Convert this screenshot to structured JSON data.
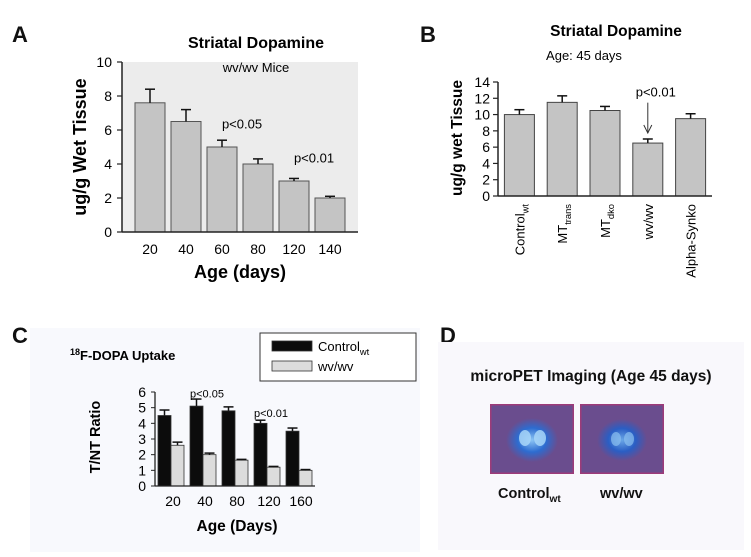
{
  "panels": {
    "a": "A",
    "b": "B",
    "c": "C",
    "d": "D"
  },
  "colors": {
    "bar_gray": "#c4c4c4",
    "bar_black": "#0c0c0c",
    "bar_light": "#dcdcdc",
    "axis": "#222222",
    "pet_bg": "#6a4d8e",
    "pet_blob": "#2a64c8",
    "pet_core": "#7fb4ec"
  },
  "chart_data": [
    {
      "type": "bar",
      "title": "Striatal Dopamine",
      "subtitle": "wv/wv Mice",
      "xlabel": "Age (days)",
      "ylabel": "ug/g Wet Tissue",
      "categories": [
        "20",
        "40",
        "60",
        "80",
        "120",
        "140"
      ],
      "values": [
        7.6,
        6.5,
        5.0,
        4.0,
        3.0,
        2.0
      ],
      "errors": [
        0.8,
        0.7,
        0.4,
        0.3,
        0.15,
        0.1
      ],
      "ylim": [
        0,
        10
      ],
      "yticks": [
        "0",
        "2",
        "4",
        "6",
        "8",
        "10"
      ],
      "annotations": [
        {
          "text": "p<0.05",
          "category": "60",
          "value": 6.1
        },
        {
          "text": "p<0.01",
          "category": "120",
          "value": 4.1
        }
      ],
      "grid": false
    },
    {
      "type": "bar",
      "title": "Striatal Dopamine",
      "subtitle": "Age: 45 days",
      "ylabel": "ug/g wet Tissue",
      "categories": [
        {
          "base": "Control",
          "sub": "wt"
        },
        {
          "base": "MT",
          "sub": "trans"
        },
        {
          "base": "MT",
          "sub": "dko"
        },
        {
          "base": "wv/wv",
          "sub": ""
        },
        {
          "base": "Alpha-Synko",
          "sub": ""
        }
      ],
      "values": [
        10.0,
        11.5,
        10.5,
        6.5,
        9.5
      ],
      "errors": [
        0.6,
        0.8,
        0.5,
        0.5,
        0.6
      ],
      "ylim": [
        0,
        14
      ],
      "yticks": [
        "0",
        "2",
        "4",
        "6",
        "8",
        "10",
        "12",
        "14"
      ],
      "annotations": [
        {
          "text": "p<0.01",
          "category": "wv/wv",
          "value": 12.2
        }
      ],
      "grid": false
    },
    {
      "type": "bar",
      "title": "F-DOPA Uptake",
      "title_sup": "18",
      "xlabel": "Age (Days)",
      "ylabel": "T/NT Ratio",
      "categories": [
        "20",
        "40",
        "80",
        "120",
        "160"
      ],
      "series": [
        {
          "name": "Control",
          "name_sub": "wt",
          "values": [
            4.5,
            5.1,
            4.8,
            4.0,
            3.5
          ],
          "errors": [
            0.35,
            0.45,
            0.25,
            0.2,
            0.2
          ]
        },
        {
          "name": "wv/wv",
          "name_sub": "",
          "values": [
            2.6,
            2.0,
            1.65,
            1.2,
            1.0
          ],
          "errors": [
            0.2,
            0.1,
            0.05,
            0.05,
            0.05
          ]
        }
      ],
      "ylim": [
        0,
        6
      ],
      "yticks": [
        "0",
        "1",
        "2",
        "3",
        "4",
        "5",
        "6"
      ],
      "legend": "top-right",
      "annotations": [
        {
          "text": "p<0.05",
          "category": "40",
          "value": 5.65
        },
        {
          "text": "p<0.01",
          "category": "120",
          "value": 4.4
        }
      ],
      "grid": false
    }
  ],
  "pet": {
    "title": "microPET Imaging (Age 45 days)",
    "labels": [
      {
        "base": "Control",
        "sub": "wt"
      },
      {
        "base": "wv/wv",
        "sub": ""
      }
    ]
  }
}
